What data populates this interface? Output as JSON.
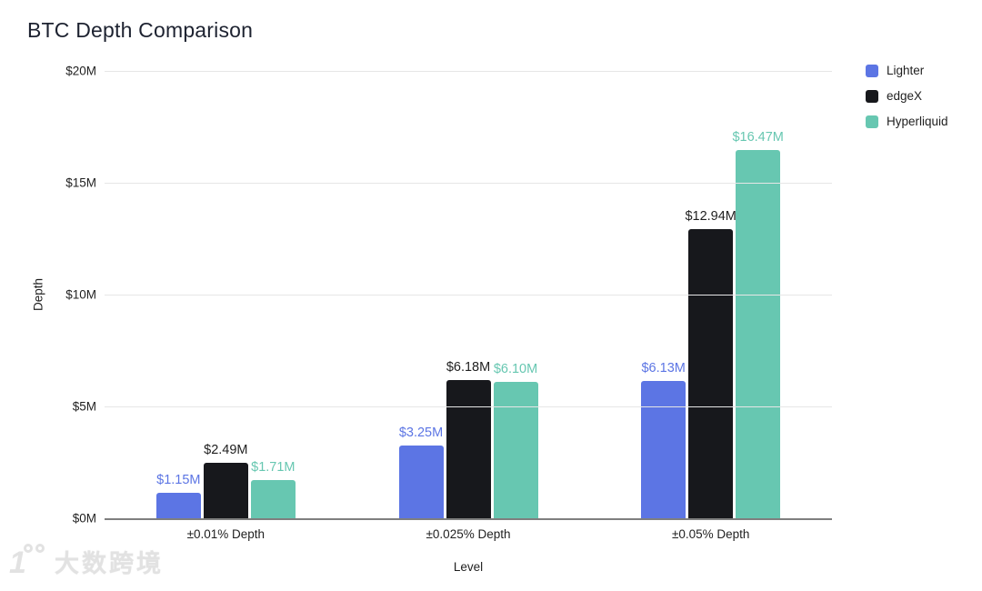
{
  "chart_data": {
    "type": "bar",
    "title": "BTC Depth Comparison",
    "xlabel": "Level",
    "ylabel": "Depth",
    "categories": [
      "±0.01% Depth",
      "±0.025% Depth",
      "±0.05% Depth"
    ],
    "series": [
      {
        "name": "Lighter",
        "color": "#5c75e4",
        "values": [
          1.15,
          3.25,
          6.13
        ],
        "labels": [
          "$1.15M",
          "$3.25M",
          "$6.13M"
        ]
      },
      {
        "name": "edgeX",
        "color": "#17181c",
        "values": [
          2.49,
          6.18,
          12.94
        ],
        "labels": [
          "$2.49M",
          "$6.18M",
          "$12.94M"
        ]
      },
      {
        "name": "Hyperliquid",
        "color": "#67c7b1",
        "values": [
          1.71,
          6.1,
          16.47
        ],
        "labels": [
          "$1.71M",
          "$6.10M",
          "$16.47M"
        ]
      }
    ],
    "ylim": [
      0,
      20
    ],
    "yticks": {
      "values": [
        0,
        5,
        10,
        15,
        20
      ],
      "labels": [
        "$0M",
        "$5M",
        "$10M",
        "$15M",
        "$20M"
      ]
    },
    "grid": true,
    "legend_position": "right",
    "colors": {
      "gridline": "#e6e6e6",
      "axis_line": "#7f7f7f",
      "text": "#1f1f1f",
      "title": "#1d2230"
    }
  },
  "watermark": {
    "logo": "100",
    "text": "大数跨境"
  }
}
